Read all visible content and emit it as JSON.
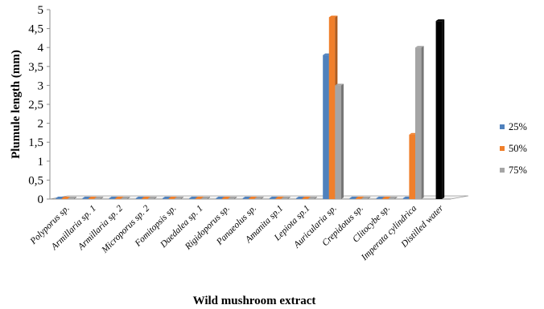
{
  "chart_data": {
    "type": "bar",
    "title": "",
    "xlabel": "Wild mushroom extract",
    "ylabel": "Plumule length (mm)",
    "ylim": [
      0,
      5
    ],
    "yticks": [
      "0",
      "0,5",
      "1",
      "1,5",
      "2",
      "2,5",
      "3",
      "3,5",
      "4",
      "4,5",
      "5"
    ],
    "grid": false,
    "legend_position": "right",
    "categories": [
      "Polyporus sp.",
      "Armillaria sp. 1",
      "Armillaria sp. 2",
      "Microporus sp. 2",
      "Fomitopsis sp.",
      "Daedalea sp. 1",
      "Rigidoporus sp.",
      "Panaeolus sp.",
      "Amanita sp.1",
      "Lepiota sp.1",
      "Auricularia sp.",
      "Crepidotus sp.",
      "Clitocybe sp.",
      "Imperata cylindrica",
      "Distilled water"
    ],
    "series": [
      {
        "name": "25%",
        "color": "#4f81bd",
        "values": [
          0,
          0,
          0,
          0,
          0,
          0,
          0,
          0,
          0,
          0,
          3.8,
          0,
          0,
          0,
          null
        ]
      },
      {
        "name": "50%",
        "color": "#f07f2b",
        "values": [
          0,
          0,
          0,
          0,
          0,
          0,
          0,
          0,
          0,
          0,
          4.8,
          0,
          0,
          1.7,
          null
        ]
      },
      {
        "name": "75%",
        "color": "#a5a5a5",
        "values": [
          0,
          0,
          0,
          0,
          0,
          0,
          0,
          0,
          0,
          0,
          3.0,
          0,
          0,
          4.0,
          null
        ]
      },
      {
        "name": "",
        "color": "#000000",
        "values": [
          null,
          null,
          null,
          null,
          null,
          null,
          null,
          null,
          null,
          null,
          null,
          null,
          null,
          null,
          4.7
        ]
      }
    ]
  }
}
